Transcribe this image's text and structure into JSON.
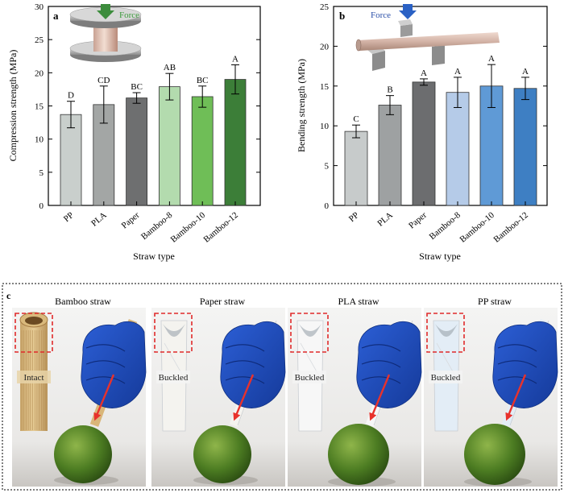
{
  "chart_data": [
    {
      "panel": "a",
      "type": "bar",
      "xlabel": "Straw type",
      "ylabel": "Compression strength (MPa)",
      "ylim": [
        0,
        30
      ],
      "yticks": [
        0,
        5,
        10,
        15,
        20,
        25,
        30
      ],
      "categories": [
        "PP",
        "PLA",
        "Paper",
        "Bamboo-8",
        "Bamboo-10",
        "Bamboo-12"
      ],
      "values": [
        13.7,
        15.2,
        16.2,
        17.9,
        16.4,
        19.0
      ],
      "errors": [
        2.0,
        2.8,
        0.8,
        2.0,
        1.6,
        2.2
      ],
      "letters": [
        "D",
        "CD",
        "BC",
        "AB",
        "BC",
        "A"
      ],
      "colors": [
        "#c9cfcc",
        "#a3a6a5",
        "#6e6f70",
        "#b3dbae",
        "#6fbe57",
        "#3c7e38"
      ],
      "inset_label": "Force"
    },
    {
      "panel": "b",
      "type": "bar",
      "xlabel": "Straw type",
      "ylabel": "Bending strength (MPa)",
      "ylim": [
        0,
        25
      ],
      "yticks": [
        0,
        5,
        10,
        15,
        20,
        25
      ],
      "categories": [
        "PP",
        "PLA",
        "Paper",
        "Bamboo-8",
        "Bamboo-10",
        "Bamboo-12"
      ],
      "values": [
        9.3,
        12.6,
        15.5,
        14.2,
        15.0,
        14.7
      ],
      "errors": [
        0.8,
        1.2,
        0.4,
        1.9,
        2.7,
        1.4
      ],
      "letters": [
        "C",
        "B",
        "A",
        "A",
        "A",
        "A"
      ],
      "colors": [
        "#c7cbcb",
        "#9ea1a2",
        "#6c6d6f",
        "#b5cbe8",
        "#5f9ad6",
        "#3e7fc3"
      ],
      "inset_label": "Force"
    }
  ],
  "photo_panel": {
    "label": "c",
    "items": [
      {
        "title": "Bamboo straw",
        "status": "Intact"
      },
      {
        "title": "Paper straw",
        "status": "Buckled"
      },
      {
        "title": "PLA straw",
        "status": "Buckled"
      },
      {
        "title": "PP straw",
        "status": "Buckled"
      }
    ]
  }
}
